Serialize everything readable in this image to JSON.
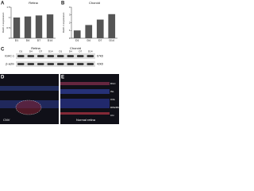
{
  "chart_data": [
    {
      "type": "bar",
      "title": "Retina",
      "panel": "A",
      "y_label": "IGHC-1 expression",
      "categories": [
        "D1",
        "D4",
        "D7",
        "D14"
      ],
      "values": [
        1,
        1.05,
        1.1,
        1.15
      ],
      "color": "#555555",
      "ylim": [
        0,
        1.5
      ],
      "yticks": [
        0,
        0.5,
        1,
        1.5
      ]
    },
    {
      "type": "bar",
      "title": "Choroid",
      "panel": "B",
      "y_label": "IGHC-1 expression",
      "categories": [
        "D1",
        "D4",
        "D7",
        "D14"
      ],
      "values": [
        1,
        1.7,
        2.4,
        3.1
      ],
      "color": "#555555",
      "ylim": [
        0,
        4
      ],
      "yticks": [
        0,
        1,
        2,
        3,
        4
      ]
    }
  ],
  "blot": {
    "panel": "C",
    "groups": [
      "Retina",
      "Choroid"
    ],
    "lanes": [
      "D1",
      "D4",
      "D7",
      "D14",
      "D1",
      "D4",
      "D7",
      "D14"
    ],
    "rows": [
      {
        "name": "IGHC-1",
        "size": "67kD"
      },
      {
        "name": "β-actin",
        "size": "42kD"
      }
    ]
  },
  "images": [
    {
      "panel": "D",
      "label": "CNV"
    },
    {
      "panel": "E",
      "label": "Normal retina",
      "layers": [
        "RGC",
        "INL",
        "ONL",
        "RPE/BM",
        "Chr"
      ]
    }
  ]
}
